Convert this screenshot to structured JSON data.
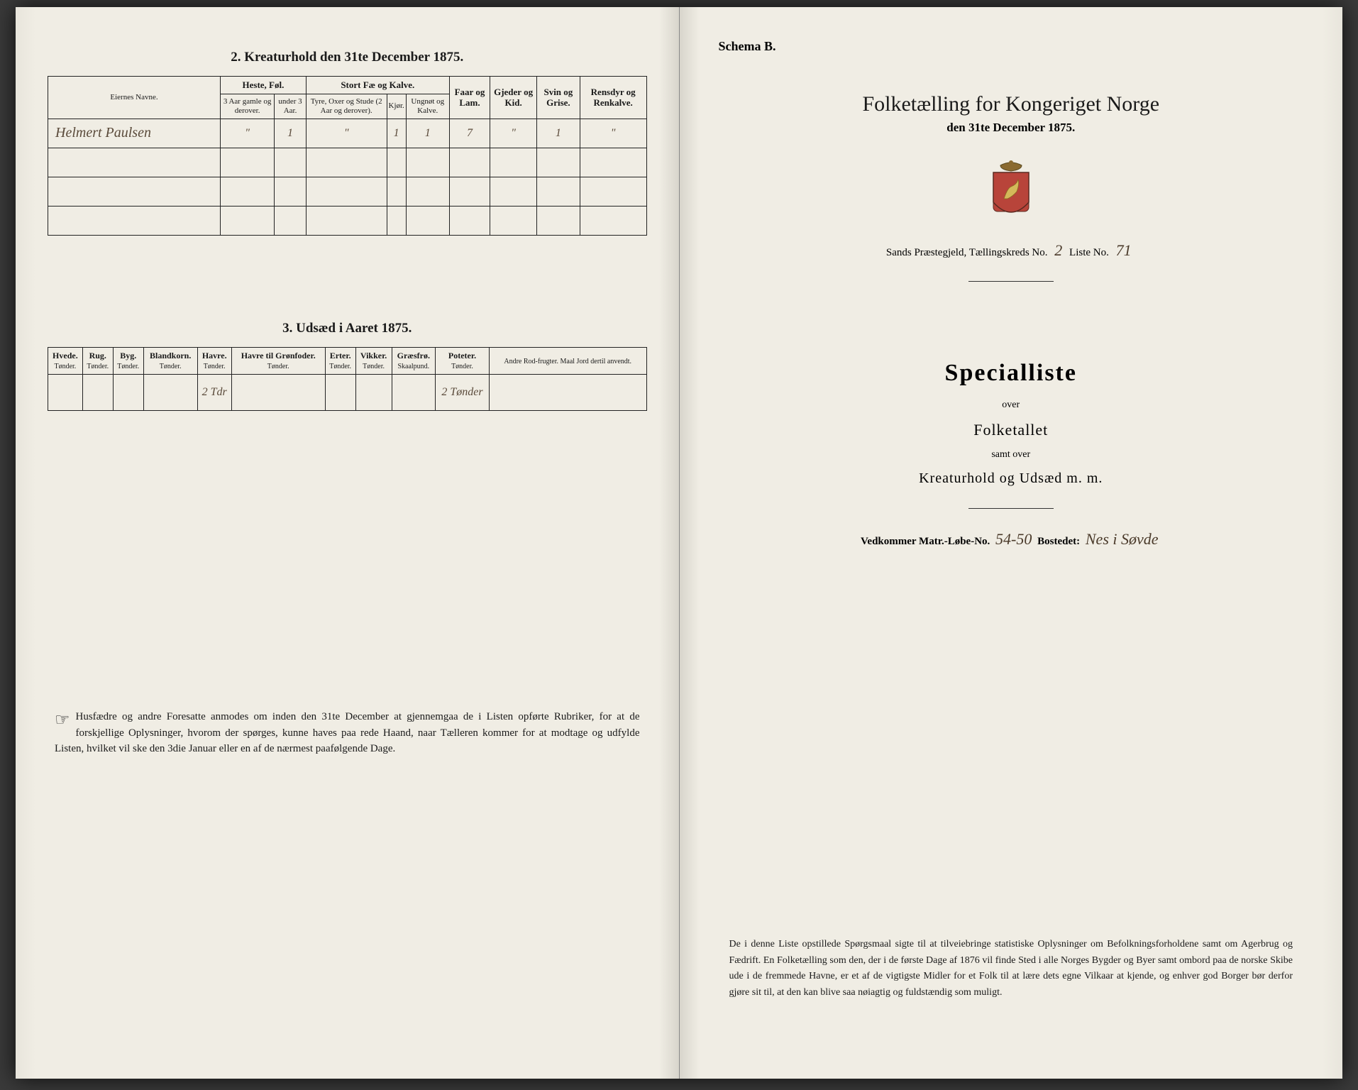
{
  "left": {
    "table2": {
      "title": "2. Kreaturhold den 31te December 1875.",
      "name_header": "Eiernes Navne.",
      "groups": [
        {
          "label": "Heste, Føl.",
          "span": 2
        },
        {
          "label": "Stort Fæ og Kalve.",
          "span": 3
        },
        {
          "label": "Faar og Lam.",
          "span": 1
        },
        {
          "label": "Gjeder og Kid.",
          "span": 1
        },
        {
          "label": "Svin og Grise.",
          "span": 1
        },
        {
          "label": "Rensdyr og Renkalve.",
          "span": 1
        }
      ],
      "subheaders": [
        "3 Aar gamle og derover.",
        "under 3 Aar.",
        "Tyre, Oxer og Stude (2 Aar og derover).",
        "Kjør.",
        "Ungnøt og Kalve.",
        "",
        "",
        "",
        ""
      ],
      "rows": [
        {
          "name": "Helmert Paulsen",
          "cells": [
            "\"",
            "1",
            "\"",
            "1",
            "1",
            "7",
            "\"",
            "1",
            "\""
          ]
        },
        {
          "name": "",
          "cells": [
            "",
            "",
            "",
            "",
            "",
            "",
            "",
            "",
            ""
          ]
        },
        {
          "name": "",
          "cells": [
            "",
            "",
            "",
            "",
            "",
            "",
            "",
            "",
            ""
          ]
        },
        {
          "name": "",
          "cells": [
            "",
            "",
            "",
            "",
            "",
            "",
            "",
            "",
            ""
          ]
        }
      ]
    },
    "table3": {
      "title": "3. Udsæd i Aaret 1875.",
      "headers": [
        {
          "top": "Hvede.",
          "bot": "Tønder."
        },
        {
          "top": "Rug.",
          "bot": "Tønder."
        },
        {
          "top": "Byg.",
          "bot": "Tønder."
        },
        {
          "top": "Blandkorn.",
          "bot": "Tønder."
        },
        {
          "top": "Havre.",
          "bot": "Tønder."
        },
        {
          "top": "Havre til Grønfoder.",
          "bot": "Tønder."
        },
        {
          "top": "Erter.",
          "bot": "Tønder."
        },
        {
          "top": "Vikker.",
          "bot": "Tønder."
        },
        {
          "top": "Græsfrø.",
          "bot": "Skaalpund."
        },
        {
          "top": "Poteter.",
          "bot": "Tønder."
        },
        {
          "top": "Andre Rod-frugter. Maal Jord dertil anvendt."
        }
      ],
      "row": [
        "",
        "",
        "",
        "",
        "2 Tdr",
        "",
        "",
        "",
        "",
        "2 Tønder",
        ""
      ]
    },
    "footnote": "Husfædre og andre Foresatte anmodes om inden den 31te December at gjennemgaa de i Listen opførte Rubriker, for at de forskjellige Oplysninger, hvorom der spørges, kunne haves paa rede Haand, naar Tælleren kommer for at modtage og udfylde Listen, hvilket vil ske den 3die Januar eller en af de nærmest paafølgende Dage."
  },
  "right": {
    "schema": "Schema B.",
    "title": "Folketælling for Kongeriget Norge",
    "subtitle": "den 31te December 1875.",
    "parish_prefix": "Sands Præstegjeld, Tællingskreds No.",
    "kreds_no": "2",
    "liste_label": "Liste No.",
    "liste_no": "71",
    "specialliste": "Specialliste",
    "over": "over",
    "folketallet": "Folketallet",
    "samtover": "samt over",
    "kreatur": "Kreaturhold og Udsæd m. m.",
    "vedkommer_prefix": "Vedkommer Matr.-Løbe-No.",
    "matr_no": "54-50",
    "bostedet_label": "Bostedet:",
    "bostedet": "Nes i Søvde",
    "footnote": "De i denne Liste opstillede Spørgsmaal sigte til at tilveiebringe statistiske Oplysninger om Befolkningsforholdene samt om Agerbrug og Fædrift. En Folketælling som den, der i de første Dage af 1876 vil finde Sted i alle Norges Bygder og Byer samt ombord paa de norske Skibe ude i de fremmede Havne, er et af de vigtigste Midler for et Folk til at lære dets egne Vilkaar at kjende, og enhver god Borger bør derfor gjøre sit til, at den kan blive saa nøiagtig og fuldstændig som muligt."
  }
}
